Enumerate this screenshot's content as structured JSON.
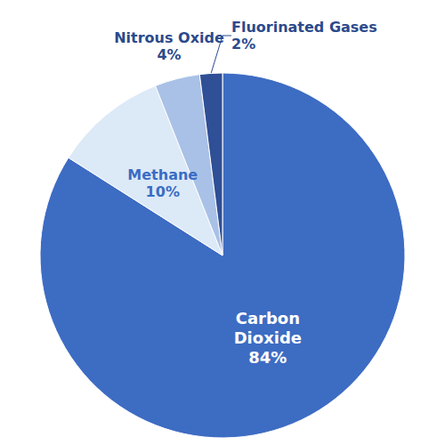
{
  "chart_data": {
    "type": "pie",
    "categories": [
      "Carbon Dioxide",
      "Methane",
      "Nitrous Oxide",
      "Fluorinated Gases"
    ],
    "values": [
      84,
      10,
      4,
      2
    ],
    "value_labels": [
      "84%",
      "10%",
      "4%",
      "2%"
    ],
    "colors": [
      "#3d6cc3",
      "#dce9f7",
      "#a9c1e6",
      "#2f4f96"
    ],
    "data_labels": true
  }
}
